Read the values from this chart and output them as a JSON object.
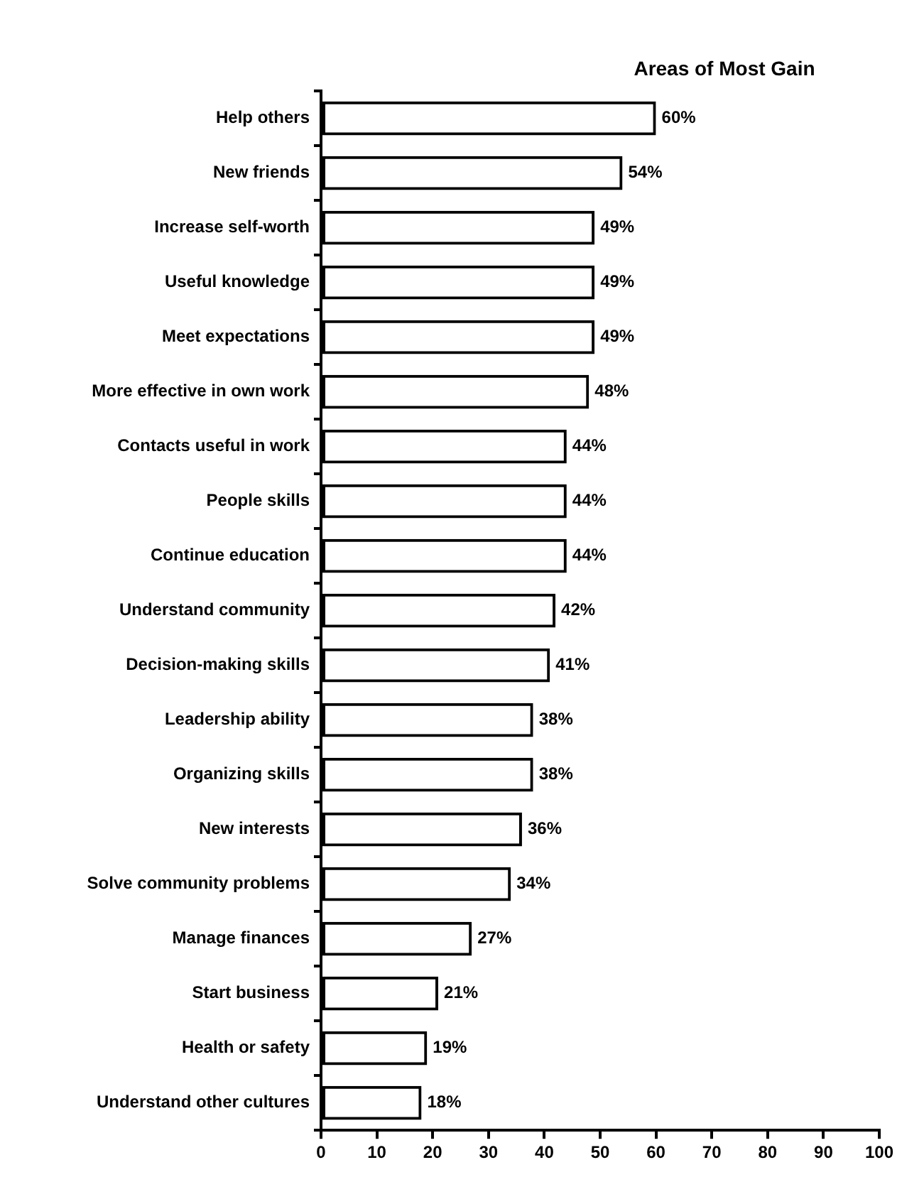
{
  "chart_data": {
    "type": "bar",
    "orientation": "horizontal",
    "title": "Areas of Most Gain",
    "categories": [
      "Help others",
      "New friends",
      "Increase self-worth",
      "Useful knowledge",
      "Meet expectations",
      "More effective in own work",
      "Contacts useful in work",
      "People skills",
      "Continue education",
      "Understand community",
      "Decision-making skills",
      "Leadership ability",
      "Organizing skills",
      "New interests",
      "Solve community problems",
      "Manage finances",
      "Start business",
      "Health or safety",
      "Understand other cultures"
    ],
    "values": [
      60,
      54,
      49,
      49,
      49,
      48,
      44,
      44,
      44,
      42,
      41,
      38,
      38,
      36,
      34,
      27,
      21,
      19,
      18
    ],
    "value_labels": [
      "60%",
      "54%",
      "49%",
      "49%",
      "49%",
      "48%",
      "44%",
      "44%",
      "44%",
      "42%",
      "41%",
      "38%",
      "38%",
      "36%",
      "34%",
      "27%",
      "21%",
      "19%",
      "18%"
    ],
    "color": "#000000",
    "xlim": [
      0,
      100
    ],
    "xticks": [
      0,
      10,
      20,
      30,
      40,
      50,
      60,
      70,
      80,
      90,
      100
    ],
    "grid": false,
    "legend": false
  }
}
